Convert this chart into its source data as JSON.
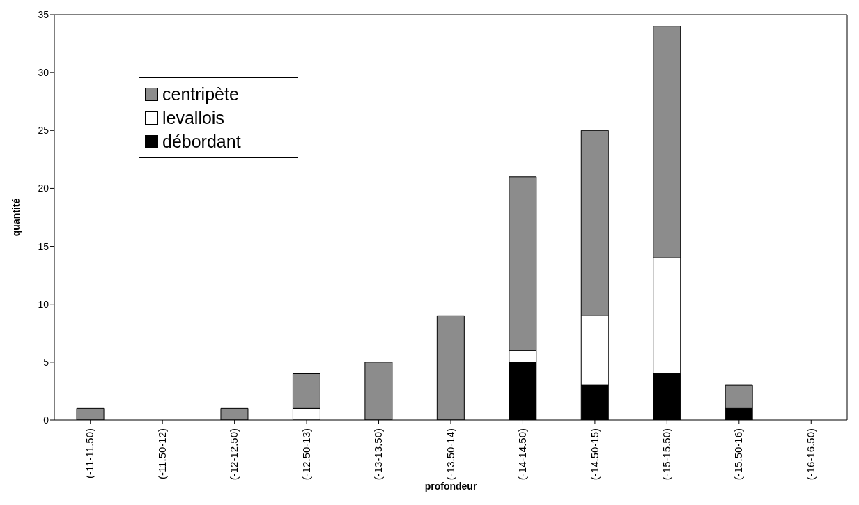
{
  "chart_data": {
    "type": "bar",
    "stacked": true,
    "xlabel": "profondeur",
    "ylabel": "quantité",
    "categories": [
      "(-11-11.50)",
      "(-11.50-12)",
      "(-12-12.50)",
      "(-12.50-13)",
      "(-13-13.50)",
      "(-13.50-14)",
      "(-14-14.50)",
      "(-14.50-15)",
      "(-15-15.50)",
      "(-15.50-16)",
      "(-16-16.50)"
    ],
    "series": [
      {
        "name": "débordant",
        "color": "#000000",
        "values": [
          0,
          0,
          0,
          0,
          0,
          0,
          5,
          3,
          4,
          1,
          0
        ]
      },
      {
        "name": "levallois",
        "color": "#ffffff",
        "values": [
          0,
          0,
          0,
          1,
          0,
          0,
          1,
          6,
          10,
          0,
          0
        ]
      },
      {
        "name": "centripète",
        "color": "#8c8c8c",
        "values": [
          1,
          0,
          1,
          3,
          5,
          9,
          15,
          16,
          20,
          2,
          0
        ]
      }
    ],
    "ylim": [
      0,
      35
    ],
    "yticks": [
      0,
      5,
      10,
      15,
      20,
      25,
      30,
      35
    ],
    "grid": false,
    "legend": "top left"
  }
}
